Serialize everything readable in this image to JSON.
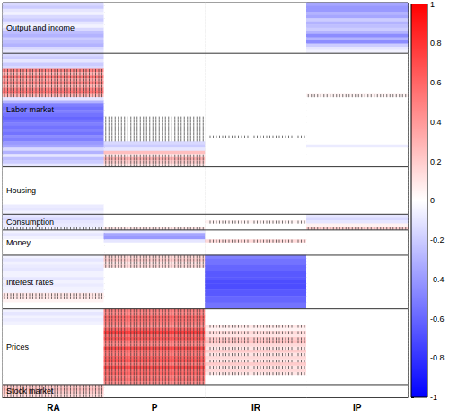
{
  "chart_data": {
    "type": "heatmap",
    "columns": [
      "RA",
      "P",
      "IR",
      "IP"
    ],
    "tick_labels": "x",
    "colorbar": {
      "range": [
        -1,
        1
      ],
      "ticks": [
        -1,
        -0.8,
        -0.6,
        -0.4,
        -0.2,
        0,
        0.2,
        0.4,
        0.6,
        0.8,
        1
      ]
    },
    "groups": [
      {
        "name": "Output and income",
        "values": [
          [
            -0.15,
            0,
            0,
            -0.35
          ],
          [
            -0.2,
            0,
            0,
            -0.4
          ],
          [
            -0.1,
            0,
            0,
            -0.4
          ],
          [
            -0.05,
            0,
            0,
            -0.3
          ],
          [
            -0.15,
            0,
            0,
            -0.35
          ],
          [
            -0.2,
            0,
            0,
            -0.2
          ],
          [
            -0.1,
            0,
            0,
            -0.3
          ],
          [
            -0.05,
            0,
            0,
            -0.25
          ],
          [
            -0.15,
            0,
            0,
            -0.2
          ],
          [
            -0.25,
            0,
            0,
            -0.3
          ],
          [
            -0.3,
            0,
            0,
            -0.45
          ],
          [
            -0.2,
            0,
            0,
            -0.3
          ],
          [
            -0.25,
            0,
            0,
            -0.45
          ],
          [
            -0.3,
            0,
            0,
            -0.2
          ],
          [
            -0.15,
            0,
            0,
            -0.1
          ],
          [
            -0.1,
            0,
            0,
            -0.05
          ]
        ],
        "hatched": []
      },
      {
        "name": "Labor market",
        "values": [
          [
            -0.15,
            0,
            0,
            0
          ],
          [
            -0.2,
            0,
            0,
            0
          ],
          [
            -0.1,
            0,
            0,
            0
          ],
          [
            -0.2,
            0,
            0,
            0
          ],
          [
            -0.15,
            0,
            0,
            0
          ],
          [
            0.5,
            0,
            0,
            0
          ],
          [
            0.3,
            0,
            0,
            0
          ],
          [
            0.55,
            0,
            0,
            0
          ],
          [
            0.35,
            0,
            0,
            0
          ],
          [
            0.5,
            0,
            0,
            0
          ],
          [
            0.3,
            0,
            0,
            0
          ],
          [
            0.5,
            0,
            0,
            0
          ],
          [
            0.55,
            0,
            0,
            0
          ],
          [
            0.3,
            0,
            0,
            0.05
          ],
          [
            -0.1,
            0,
            0,
            0
          ],
          [
            -0.3,
            0,
            0,
            0
          ],
          [
            -0.5,
            0,
            0,
            0
          ],
          [
            -0.55,
            0,
            0,
            0
          ],
          [
            -0.5,
            0,
            0,
            0
          ],
          [
            -0.55,
            0,
            0,
            0
          ],
          [
            -0.6,
            0,
            0,
            0
          ],
          [
            -0.55,
            0,
            0,
            0
          ],
          [
            -0.5,
            0,
            0,
            0
          ],
          [
            -0.55,
            0,
            0,
            0
          ],
          [
            -0.5,
            0,
            0,
            0
          ],
          [
            -0.55,
            0,
            0,
            0
          ],
          [
            -0.45,
            0,
            0,
            0
          ],
          [
            -0.5,
            0,
            0,
            0
          ],
          [
            -0.4,
            -0.15,
            0,
            0
          ],
          [
            -0.35,
            -0.2,
            0,
            -0.08
          ],
          [
            -0.15,
            -0.1,
            0,
            0
          ],
          [
            -0.3,
            0.25,
            0,
            0
          ],
          [
            -0.1,
            0.1,
            0,
            0
          ],
          [
            -0.25,
            0.3,
            0,
            0
          ],
          [
            -0.2,
            0.2,
            0,
            0
          ],
          [
            -0.1,
            0.1,
            0,
            0
          ]
        ],
        "hatched": [
          [
            5,
            0
          ],
          [
            6,
            0
          ],
          [
            7,
            0
          ],
          [
            8,
            0
          ],
          [
            9,
            0
          ],
          [
            10,
            0
          ],
          [
            11,
            0
          ],
          [
            12,
            0
          ],
          [
            13,
            0
          ],
          [
            20,
            1
          ],
          [
            21,
            1
          ],
          [
            22,
            1
          ],
          [
            23,
            1
          ],
          [
            24,
            1
          ],
          [
            25,
            1
          ],
          [
            26,
            1
          ],
          [
            27,
            1
          ],
          [
            32,
            1
          ],
          [
            33,
            1
          ],
          [
            34,
            1
          ],
          [
            35,
            1
          ],
          [
            26,
            2
          ],
          [
            13,
            3
          ]
        ]
      },
      {
        "name": "Housing",
        "values": [
          [
            0,
            0,
            0,
            0
          ],
          [
            0,
            0,
            0,
            0
          ],
          [
            0,
            0,
            0,
            0
          ],
          [
            0,
            0,
            0,
            0
          ],
          [
            0,
            0,
            0,
            0
          ],
          [
            0,
            0,
            0,
            0
          ],
          [
            0,
            0,
            0,
            0
          ],
          [
            0,
            0,
            0,
            0
          ],
          [
            0,
            0,
            0,
            0
          ],
          [
            0,
            0,
            0,
            0
          ],
          [
            0,
            0,
            0,
            0
          ],
          [
            0,
            0,
            0,
            0
          ],
          [
            -0.08,
            0,
            0,
            0
          ],
          [
            -0.1,
            0,
            0,
            0
          ],
          [
            -0.05,
            0,
            0,
            0
          ]
        ],
        "hatched": []
      },
      {
        "name": "Consumption",
        "values": [
          [
            -0.1,
            0,
            0,
            -0.1
          ],
          [
            -0.15,
            0,
            0,
            -0.15
          ],
          [
            -0.1,
            0,
            0.05,
            -0.1
          ],
          [
            -0.08,
            0,
            0,
            0.05
          ],
          [
            -0.05,
            0.1,
            0,
            0.2
          ]
        ],
        "hatched": [
          [
            4,
            0
          ],
          [
            4,
            1
          ],
          [
            2,
            2
          ],
          [
            4,
            3
          ]
        ]
      },
      {
        "name": "Money",
        "values": [
          [
            -0.05,
            -0.1,
            0,
            0
          ],
          [
            -0.1,
            -0.35,
            0,
            0
          ],
          [
            -0.05,
            -0.4,
            0,
            0
          ],
          [
            0,
            -0.1,
            0.15,
            0
          ],
          [
            0,
            0,
            0,
            0
          ],
          [
            0,
            0,
            0,
            0
          ],
          [
            0,
            0,
            0,
            0
          ],
          [
            0,
            0,
            0,
            0
          ]
        ],
        "hatched": [
          [
            3,
            2
          ]
        ]
      },
      {
        "name": "Interest rates",
        "values": [
          [
            -0.05,
            0.15,
            -0.5,
            0
          ],
          [
            -0.1,
            0.2,
            -0.55,
            0
          ],
          [
            -0.05,
            0.1,
            -0.55,
            0
          ],
          [
            -0.08,
            0.15,
            -0.6,
            0
          ],
          [
            -0.1,
            0,
            -0.6,
            0
          ],
          [
            -0.05,
            0,
            -0.65,
            0
          ],
          [
            -0.05,
            0,
            -0.65,
            0
          ],
          [
            -0.1,
            0,
            -0.65,
            0
          ],
          [
            -0.05,
            0,
            -0.7,
            0
          ],
          [
            -0.08,
            0,
            -0.7,
            0
          ],
          [
            -0.05,
            0,
            -0.7,
            0
          ],
          [
            -0.05,
            0,
            -0.65,
            0
          ],
          [
            0.1,
            0,
            -0.65,
            0
          ],
          [
            0.1,
            0,
            -0.6,
            0
          ],
          [
            0.05,
            0,
            -0.6,
            0
          ],
          [
            0,
            0,
            -0.55,
            0
          ],
          [
            0,
            0,
            -0.55,
            0
          ]
        ],
        "hatched": [
          [
            0,
            1
          ],
          [
            1,
            1
          ],
          [
            2,
            1
          ],
          [
            3,
            1
          ],
          [
            12,
            0
          ],
          [
            13,
            0
          ]
        ]
      },
      {
        "name": "Prices",
        "values": [
          [
            -0.05,
            0.5,
            0,
            0
          ],
          [
            -0.1,
            0.45,
            0,
            0
          ],
          [
            -0.05,
            0.6,
            0,
            0
          ],
          [
            -0.08,
            0.55,
            0,
            0
          ],
          [
            -0.05,
            0.5,
            0,
            0
          ],
          [
            0,
            0.4,
            0.1,
            0
          ],
          [
            0,
            0.6,
            0.05,
            0
          ],
          [
            0,
            0.75,
            0.15,
            0
          ],
          [
            0,
            0.55,
            0.1,
            0
          ],
          [
            0,
            0.65,
            0.2,
            0
          ],
          [
            0,
            0.5,
            0.25,
            0
          ],
          [
            0,
            0.45,
            0.15,
            0
          ],
          [
            0,
            0.7,
            0.1,
            0
          ],
          [
            0,
            0.55,
            0.2,
            0
          ],
          [
            0,
            0.5,
            0.1,
            0
          ],
          [
            0,
            0.6,
            0.15,
            0
          ],
          [
            0,
            0.65,
            0.1,
            0
          ],
          [
            0,
            0.5,
            0.2,
            0
          ],
          [
            0,
            0.7,
            0.1,
            0
          ],
          [
            0,
            0.55,
            0.15,
            0
          ],
          [
            0,
            0.6,
            0.1,
            0
          ],
          [
            0,
            0.5,
            0,
            0
          ],
          [
            0,
            0.55,
            0,
            0
          ],
          [
            0,
            0.45,
            0,
            0
          ]
        ],
        "hatched": [
          [
            0,
            1
          ],
          [
            1,
            1
          ],
          [
            2,
            1
          ],
          [
            3,
            1
          ],
          [
            4,
            1
          ],
          [
            5,
            1
          ],
          [
            6,
            1
          ],
          [
            7,
            1
          ],
          [
            8,
            1
          ],
          [
            9,
            1
          ],
          [
            10,
            1
          ],
          [
            11,
            1
          ],
          [
            12,
            1
          ],
          [
            13,
            1
          ],
          [
            14,
            1
          ],
          [
            15,
            1
          ],
          [
            16,
            1
          ],
          [
            17,
            1
          ],
          [
            18,
            1
          ],
          [
            19,
            1
          ],
          [
            20,
            1
          ],
          [
            21,
            1
          ],
          [
            22,
            1
          ],
          [
            23,
            1
          ],
          [
            5,
            2
          ],
          [
            7,
            2
          ],
          [
            9,
            2
          ],
          [
            10,
            2
          ],
          [
            12,
            2
          ],
          [
            14,
            2
          ],
          [
            16,
            2
          ],
          [
            18,
            2
          ],
          [
            20,
            2
          ]
        ]
      },
      {
        "name": "Stock market",
        "values": [
          [
            0.2,
            0,
            0,
            0
          ],
          [
            0.25,
            0,
            0,
            0
          ],
          [
            0.2,
            0,
            0,
            0
          ],
          [
            0.15,
            0,
            0,
            0
          ]
        ],
        "hatched": [
          [
            0,
            0
          ],
          [
            1,
            0
          ],
          [
            2,
            0
          ],
          [
            3,
            0
          ]
        ]
      }
    ]
  }
}
